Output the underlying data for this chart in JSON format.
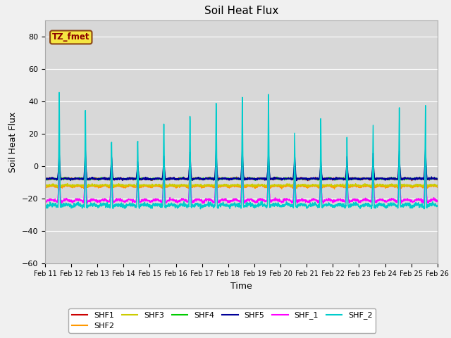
{
  "title": "Soil Heat Flux",
  "xlabel": "Time",
  "ylabel": "Soil Heat Flux",
  "ylim": [
    -60,
    90
  ],
  "yticks": [
    -60,
    -40,
    -20,
    0,
    20,
    40,
    60,
    80
  ],
  "n_days": 15,
  "start_day": 11,
  "series_colors": {
    "SHF1": "#cc0000",
    "SHF2": "#ff9900",
    "SHF3": "#cccc00",
    "SHF4": "#00cc00",
    "SHF5": "#000099",
    "SHF_1": "#ff00ff",
    "SHF_2": "#00cccc"
  },
  "legend_labels": [
    "SHF1",
    "SHF2",
    "SHF3",
    "SHF4",
    "SHF5",
    "SHF_1",
    "SHF_2"
  ],
  "background_color": "#f0f0f0",
  "plot_bg_color": "#d8d8d8",
  "grid_color": "#ffffff",
  "annotation_text": "TZ_fmet",
  "shf2_peak_amps": [
    10,
    12,
    10,
    8,
    10,
    11,
    12,
    12,
    11,
    10,
    8,
    9,
    10,
    11,
    12
  ],
  "shf2_trough": -13,
  "shf3_peak_amps": [
    10,
    11,
    9,
    7,
    9,
    10,
    11,
    11,
    10,
    9,
    7,
    8,
    9,
    10,
    11
  ],
  "shf3_trough": -12,
  "shf4_peak_amps": [
    16,
    18,
    14,
    10,
    14,
    16,
    18,
    18,
    16,
    14,
    10,
    12,
    14,
    16,
    18
  ],
  "shf4_trough": -8,
  "shf5_peak_amps": [
    18,
    20,
    16,
    12,
    16,
    18,
    20,
    20,
    18,
    16,
    12,
    14,
    16,
    18,
    20
  ],
  "shf5_trough": -8,
  "shf1_peak_amps": [
    8,
    10,
    8,
    6,
    8,
    9,
    10,
    10,
    9,
    8,
    6,
    7,
    8,
    9,
    10
  ],
  "shf1_trough": -8,
  "shf_1_peak_amps": [
    18,
    22,
    18,
    14,
    18,
    20,
    22,
    22,
    20,
    18,
    14,
    16,
    18,
    20,
    22
  ],
  "shf_1_trough": -22,
  "shf_2_peak_amps": [
    75,
    65,
    45,
    46,
    57,
    62,
    69,
    72,
    73,
    47,
    55,
    43,
    52,
    63,
    65
  ],
  "shf_2_trough": -25
}
